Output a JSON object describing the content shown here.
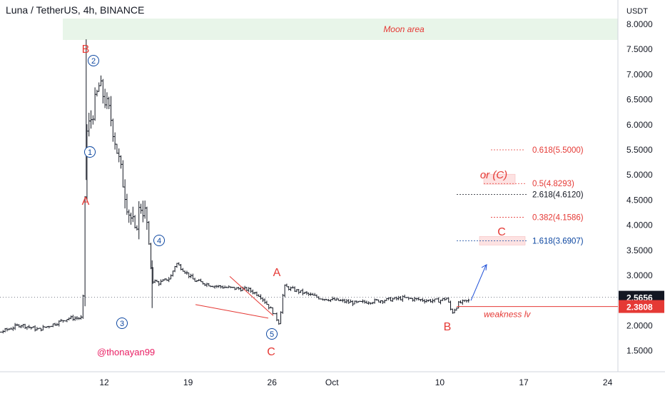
{
  "header": {
    "title": "Luna / TetherUS, 4h, BINANCE"
  },
  "watermark": "@thonayan99",
  "price_axis": {
    "currency": "USDT",
    "ticks": [
      "8.0000",
      "7.5000",
      "7.0000",
      "6.5000",
      "6.0000",
      "5.5000",
      "5.0000",
      "4.5000",
      "4.0000",
      "3.5000",
      "3.0000",
      "2.5000",
      "2.0000",
      "1.5000"
    ],
    "current_price": "2.5656",
    "weakness_price": "2.3808"
  },
  "time_axis": {
    "ticks": [
      "12",
      "19",
      "26",
      "Oct",
      "10",
      "17",
      "24"
    ]
  },
  "annotations": {
    "moon_area": "Moon area",
    "weakness": "weakness lv",
    "or_c": "or (C)",
    "fib_0618": "0.618(5.5000)",
    "fib_05": "0.5(4.8293)",
    "fib_2618": "2.618(4.6120)",
    "fib_0382": "0.382(4.1586)",
    "fib_1618": "1.618(3.6907)",
    "labels": {
      "B_top": "B",
      "A_left": "A",
      "A_mid": "A",
      "C_bottom": "C",
      "B_right": "B",
      "C_target": "C",
      "w1": "1",
      "w2": "2",
      "w3": "3",
      "w4": "4",
      "w5": "5"
    }
  },
  "colors": {
    "candle": "#131722",
    "wave_red": "#e53935",
    "wave_blue": "#0d47a1",
    "moon_fill": "#e8f5e9",
    "current_price_bg": "#131722",
    "weakness_bg": "#e53935"
  },
  "chart_data": {
    "type": "candlestick",
    "title": "Luna / TetherUS, 4h, BINANCE",
    "y_unit": "USDT",
    "ylim": [
      1.1,
      8.45
    ],
    "grid": false,
    "x_ticks": [
      "12",
      "19",
      "26",
      "Oct",
      "10",
      "17",
      "24"
    ],
    "price_path_approx": [
      {
        "t": "early Sep",
        "close": 1.85
      },
      {
        "t": "Sep 10",
        "close": 2.15
      },
      {
        "t": "Sep 10 (spike)",
        "high": 7.7
      },
      {
        "t": "Sep 12",
        "close": 6.6
      },
      {
        "t": "Sep 14",
        "close": 4.1
      },
      {
        "t": "Sep 15",
        "low": 2.35
      },
      {
        "t": "Sep 17",
        "high": 3.5
      },
      {
        "t": "Sep 26",
        "low": 2.05
      },
      {
        "t": "Sep 27",
        "high": 2.9
      },
      {
        "t": "Oct 11",
        "low": 2.2
      },
      {
        "t": "Oct 12",
        "close": 2.5656
      }
    ],
    "fib_levels": [
      {
        "ratio": "0.618",
        "price": 5.5
      },
      {
        "ratio": "0.5",
        "price": 4.8293
      },
      {
        "ratio": "2.618",
        "price": 4.612
      },
      {
        "ratio": "0.382",
        "price": 4.1586
      },
      {
        "ratio": "1.618",
        "price": 3.6907
      }
    ],
    "current_price": 2.5656,
    "weakness_level": 2.3808
  }
}
